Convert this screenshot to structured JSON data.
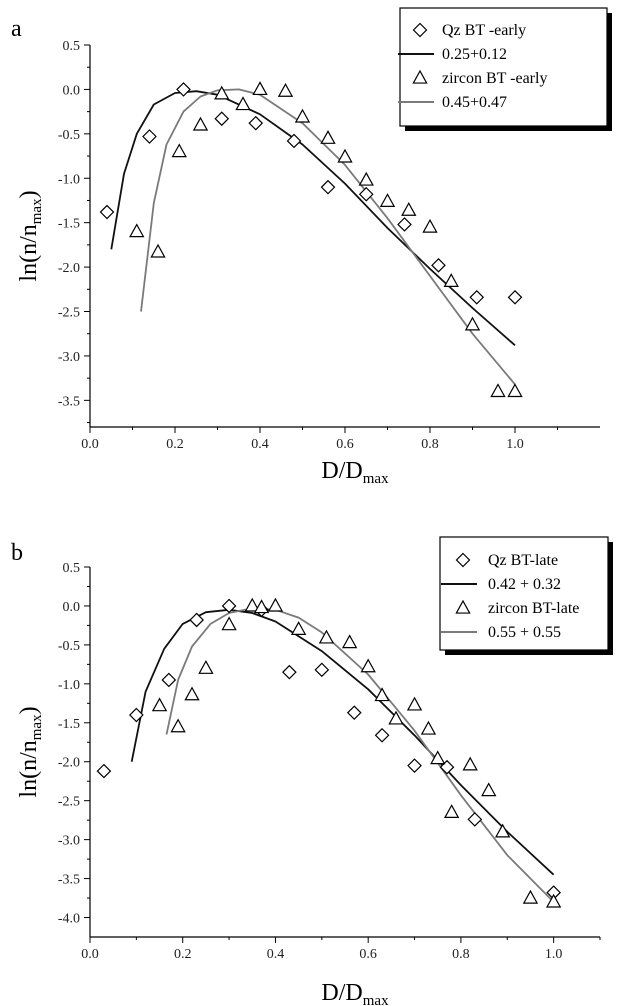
{
  "chart_data": [
    {
      "panel_label": "a",
      "type": "scatter",
      "xlabel_main": "D/D",
      "xlabel_sub": "max",
      "ylabel_main": "ln(n/n",
      "ylabel_sub": "max",
      "ylabel_close": ")",
      "xlim": [
        0.0,
        1.2
      ],
      "ylim": [
        -3.8,
        0.5
      ],
      "x_ticks": [
        0.0,
        0.2,
        0.4,
        0.6,
        0.8,
        1.0
      ],
      "x_tick_labels": [
        "0.0",
        "0.2",
        "0.4",
        "0.6",
        "0.8",
        "1.0"
      ],
      "y_ticks": [
        0.5,
        0.0,
        -0.5,
        -1.0,
        -1.5,
        -2.0,
        -2.5,
        -3.0,
        -3.5
      ],
      "y_tick_labels": [
        "0.5",
        "0.0",
        "-0.5",
        "-1.0",
        "-1.5",
        "-2.0",
        "-2.5",
        "-3.0",
        "-3.5"
      ],
      "series": [
        {
          "name": "Qz BT -early",
          "marker": "diamond",
          "x": [
            0.04,
            0.14,
            0.22,
            0.31,
            0.39,
            0.48,
            0.56,
            0.65,
            0.74,
            0.82,
            0.91,
            1.0
          ],
          "y": [
            -1.38,
            -0.53,
            0.0,
            -0.33,
            -0.38,
            -0.58,
            -1.1,
            -1.18,
            -1.52,
            -1.98,
            -2.34,
            -2.34
          ]
        },
        {
          "name": "zircon BT -early",
          "marker": "triangle",
          "x": [
            0.11,
            0.16,
            0.21,
            0.26,
            0.31,
            0.36,
            0.4,
            0.46,
            0.5,
            0.56,
            0.6,
            0.65,
            0.7,
            0.75,
            0.8,
            0.85,
            0.9,
            0.96,
            1.0
          ],
          "y": [
            -1.6,
            -1.83,
            -0.7,
            -0.4,
            -0.05,
            -0.17,
            0.0,
            -0.02,
            -0.31,
            -0.55,
            -0.76,
            -1.02,
            -1.26,
            -1.36,
            -1.55,
            -2.16,
            -2.65,
            -3.4,
            -3.4
          ]
        },
        {
          "name": "0.25+0.12",
          "line_color": "#111111",
          "x": [
            0.05,
            0.08,
            0.11,
            0.15,
            0.2,
            0.25,
            0.3,
            0.4,
            0.5,
            0.6,
            0.7,
            0.8,
            0.9,
            1.0
          ],
          "y": [
            -1.8,
            -0.95,
            -0.5,
            -0.17,
            -0.04,
            -0.02,
            -0.06,
            -0.28,
            -0.62,
            -1.06,
            -1.56,
            -2.02,
            -2.46,
            -2.88
          ]
        },
        {
          "name": "0.45+0.47",
          "line_color": "#7a7a7a",
          "x": [
            0.12,
            0.15,
            0.18,
            0.22,
            0.26,
            0.3,
            0.35,
            0.4,
            0.5,
            0.6,
            0.7,
            0.8,
            0.9,
            1.0
          ],
          "y": [
            -2.5,
            -1.28,
            -0.62,
            -0.25,
            -0.08,
            -0.01,
            0.0,
            -0.06,
            -0.38,
            -0.85,
            -1.45,
            -2.1,
            -2.75,
            -3.32
          ]
        }
      ],
      "legend": [
        {
          "marker": "diamond",
          "label": "Qz BT -early"
        },
        {
          "line_color": "#111111",
          "label": "0.25+0.12"
        },
        {
          "marker": "triangle",
          "label": "zircon BT -early"
        },
        {
          "line_color": "#7a7a7a",
          "label": "0.45+0.47"
        }
      ],
      "legend_position": "top-right"
    },
    {
      "panel_label": "b",
      "type": "scatter",
      "xlabel_main": "D/D",
      "xlabel_sub": "max",
      "ylabel_main": "ln(n/n",
      "ylabel_sub": "max",
      "ylabel_close": ")",
      "xlim": [
        0.0,
        1.1
      ],
      "ylim": [
        -4.25,
        0.5
      ],
      "x_ticks": [
        0.0,
        0.2,
        0.4,
        0.6,
        0.8,
        1.0
      ],
      "x_tick_labels": [
        "0.0",
        "0.2",
        "0.4",
        "0.6",
        "0.8",
        "1.0"
      ],
      "y_ticks": [
        0.5,
        0.0,
        -0.5,
        -1.0,
        -1.5,
        -2.0,
        -2.5,
        -3.0,
        -3.5,
        -4.0
      ],
      "y_tick_labels": [
        "0.5",
        "0.0",
        "-0.5",
        "-1.0",
        "-1.5",
        "-2.0",
        "-2.5",
        "-3.0",
        "-3.5",
        "-4.0"
      ],
      "series": [
        {
          "name": "Qz BT-late",
          "marker": "diamond",
          "x": [
            0.03,
            0.1,
            0.17,
            0.23,
            0.3,
            0.37,
            0.43,
            0.5,
            0.57,
            0.63,
            0.7,
            0.77,
            0.83,
            1.0
          ],
          "y": [
            -2.12,
            -1.4,
            -0.95,
            -0.18,
            0.0,
            -0.05,
            -0.85,
            -0.82,
            -1.37,
            -1.66,
            -2.05,
            -2.07,
            -2.74,
            -3.68
          ]
        },
        {
          "name": "zircon BT-late",
          "marker": "triangle",
          "x": [
            0.15,
            0.19,
            0.22,
            0.25,
            0.3,
            0.35,
            0.37,
            0.4,
            0.45,
            0.51,
            0.56,
            0.6,
            0.63,
            0.66,
            0.7,
            0.73,
            0.75,
            0.78,
            0.82,
            0.86,
            0.89,
            0.95,
            1.0
          ],
          "y": [
            -1.28,
            -1.55,
            -1.14,
            -0.8,
            -0.24,
            0.0,
            -0.02,
            0.0,
            -0.3,
            -0.41,
            -0.47,
            -0.78,
            -1.15,
            -1.45,
            -1.27,
            -1.58,
            -1.96,
            -2.65,
            -2.04,
            -2.37,
            -2.9,
            -3.75,
            -3.8
          ]
        },
        {
          "name": "0.42 + 0.32",
          "line_color": "#111111",
          "x": [
            0.09,
            0.12,
            0.16,
            0.2,
            0.25,
            0.3,
            0.35,
            0.4,
            0.5,
            0.6,
            0.7,
            0.8,
            0.9,
            1.0
          ],
          "y": [
            -2.0,
            -1.1,
            -0.55,
            -0.23,
            -0.08,
            -0.05,
            -0.09,
            -0.2,
            -0.58,
            -1.07,
            -1.66,
            -2.3,
            -2.9,
            -3.45
          ]
        },
        {
          "name": "0.55 + 0.55",
          "line_color": "#7a7a7a",
          "x": [
            0.165,
            0.19,
            0.22,
            0.26,
            0.3,
            0.35,
            0.4,
            0.45,
            0.5,
            0.6,
            0.7,
            0.8,
            0.9,
            1.0
          ],
          "y": [
            -1.65,
            -0.95,
            -0.52,
            -0.23,
            -0.09,
            -0.03,
            -0.05,
            -0.15,
            -0.34,
            -0.88,
            -1.6,
            -2.43,
            -3.2,
            -3.8
          ]
        }
      ],
      "legend": [
        {
          "marker": "diamond",
          "label": "Qz BT-late"
        },
        {
          "line_color": "#111111",
          "label": "0.42 + 0.32"
        },
        {
          "marker": "triangle",
          "label": "zircon BT-late"
        },
        {
          "line_color": "#7a7a7a",
          "label": "0.55 + 0.55"
        }
      ],
      "legend_position": "top-right"
    }
  ]
}
